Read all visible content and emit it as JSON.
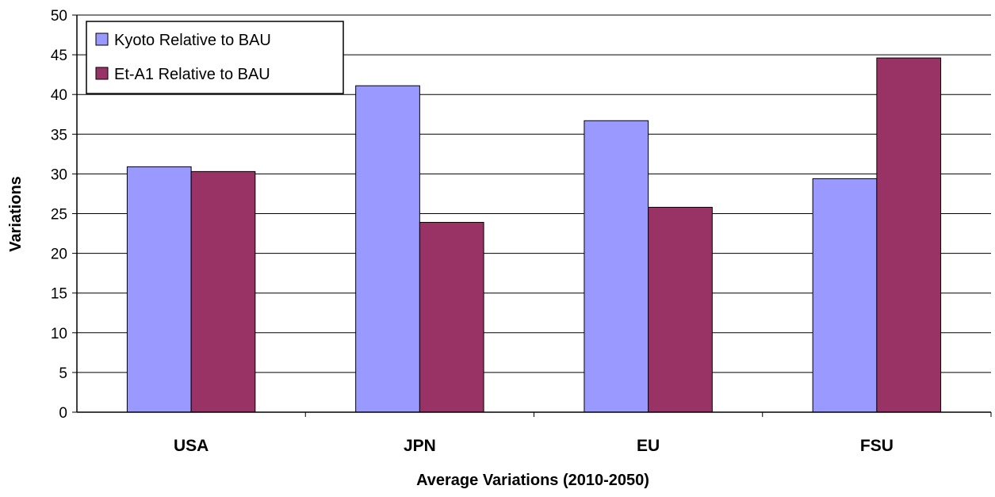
{
  "chart_data": {
    "type": "bar",
    "categories": [
      "USA",
      "JPN",
      "EU",
      "FSU"
    ],
    "series": [
      {
        "name": "Kyoto Relative to BAU",
        "color": "#9999ff",
        "values": [
          30.9,
          41.1,
          36.7,
          29.4
        ]
      },
      {
        "name": "Et-A1 Relative to BAU",
        "color": "#993366",
        "values": [
          30.3,
          23.9,
          25.8,
          44.6
        ]
      }
    ],
    "xlabel": "Average Variations (2010-2050)",
    "ylabel": "Variations",
    "ylim": [
      0,
      50
    ],
    "yticks": [
      "0",
      "5",
      "10",
      "15",
      "20",
      "25",
      "30",
      "35",
      "40",
      "45",
      "50"
    ],
    "grid": true,
    "legend_position": "top-left"
  }
}
